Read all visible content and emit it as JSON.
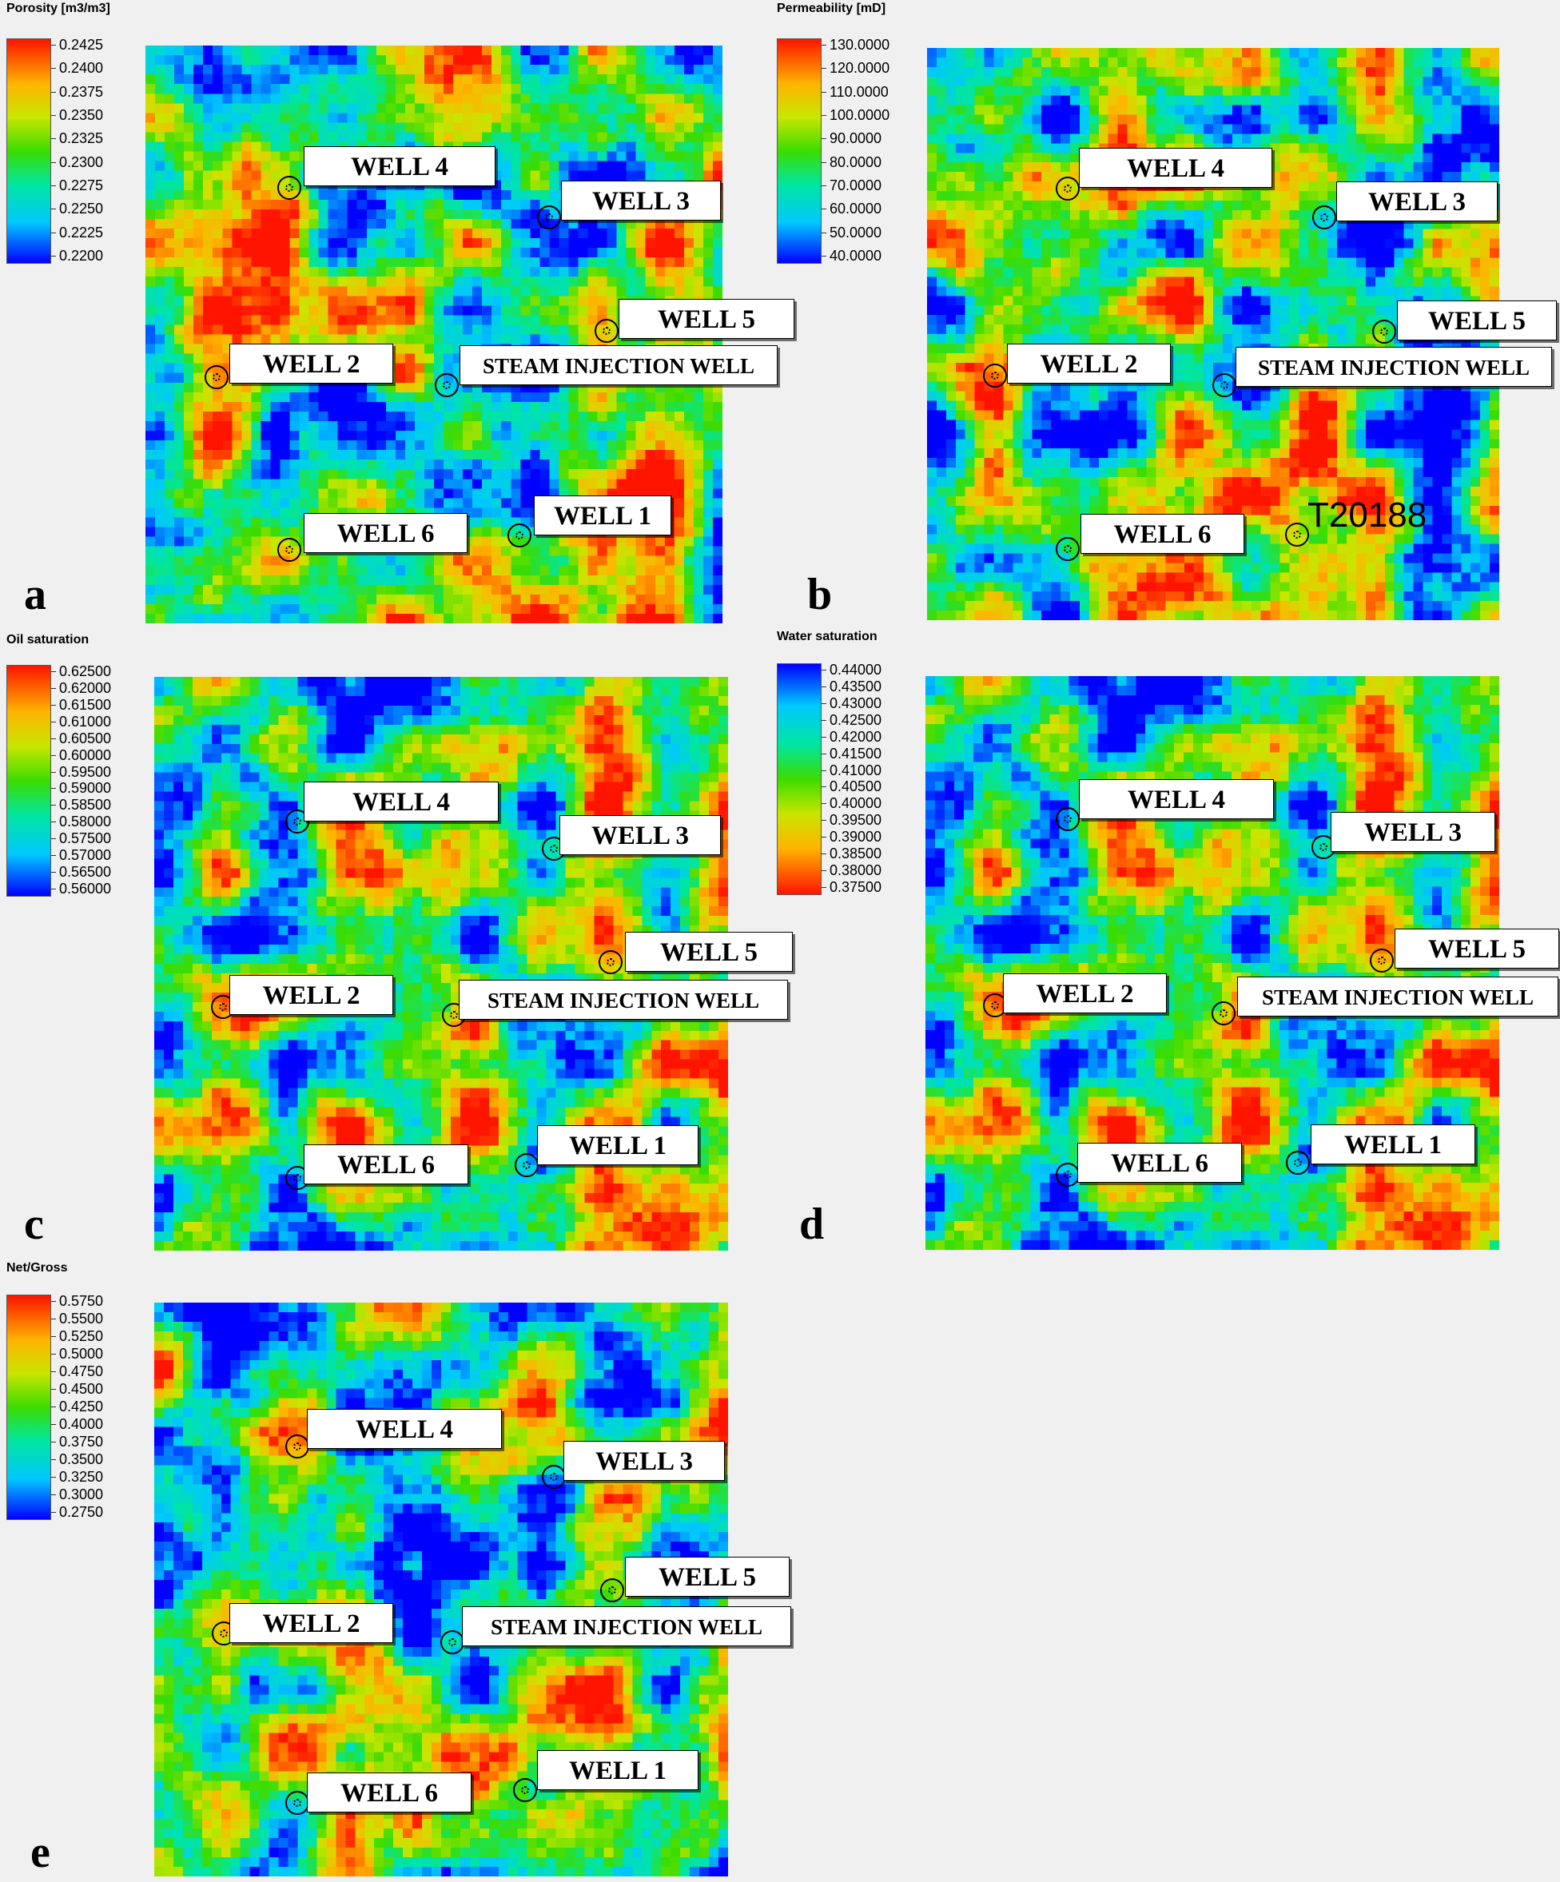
{
  "panels": [
    {
      "id": "a",
      "letter": "a",
      "legend_title": "Porosity [m3/m3]",
      "scale_colors": "rainbow_high_top",
      "ticks": [
        "0.2425",
        "0.2400",
        "0.2375",
        "0.2350",
        "0.2325",
        "0.2300",
        "0.2275",
        "0.2250",
        "0.2225",
        "0.2200"
      ],
      "seed": 11,
      "wells": [
        {
          "name": "WELL 4"
        },
        {
          "name": "WELL 3"
        },
        {
          "name": "WELL 5"
        },
        {
          "name": "WELL 2"
        },
        {
          "name": "STEAM INJECTION WELL"
        },
        {
          "name": "WELL 6"
        },
        {
          "name": "WELL 1"
        }
      ]
    },
    {
      "id": "b",
      "letter": "b",
      "legend_title": "Permeability [mD]",
      "scale_colors": "rainbow_high_top",
      "ticks": [
        "130.0000",
        "120.0000",
        "110.0000",
        "100.0000",
        "90.0000",
        "80.0000",
        "70.0000",
        "60.0000",
        "50.0000",
        "40.0000"
      ],
      "seed": 23,
      "raw_label": "T20188",
      "wells": [
        {
          "name": "WELL 4"
        },
        {
          "name": "WELL 3"
        },
        {
          "name": "WELL 5"
        },
        {
          "name": "WELL 2"
        },
        {
          "name": "STEAM INJECTION WELL"
        },
        {
          "name": "WELL 6"
        }
      ]
    },
    {
      "id": "c",
      "letter": "c",
      "legend_title": "Oil saturation",
      "scale_colors": "rainbow_high_top",
      "ticks": [
        "0.62500",
        "0.62000",
        "0.61500",
        "0.61000",
        "0.60500",
        "0.60000",
        "0.59500",
        "0.59000",
        "0.58500",
        "0.58000",
        "0.57500",
        "0.57000",
        "0.56500",
        "0.56000"
      ],
      "seed": 37,
      "wells": [
        {
          "name": "WELL 4"
        },
        {
          "name": "WELL 3"
        },
        {
          "name": "WELL 5"
        },
        {
          "name": "WELL 2"
        },
        {
          "name": "STEAM INJECTION WELL"
        },
        {
          "name": "WELL 1"
        },
        {
          "name": "WELL 6"
        }
      ]
    },
    {
      "id": "d",
      "letter": "d",
      "legend_title": "Water saturation",
      "scale_colors": "rainbow_high_bottom",
      "ticks": [
        "0.44000",
        "0.43500",
        "0.43000",
        "0.42500",
        "0.42000",
        "0.41500",
        "0.41000",
        "0.40500",
        "0.40000",
        "0.39500",
        "0.39000",
        "0.38500",
        "0.38000",
        "0.37500"
      ],
      "seed": 37,
      "wells": [
        {
          "name": "WELL 4"
        },
        {
          "name": "WELL 3"
        },
        {
          "name": "WELL 5"
        },
        {
          "name": "WELL 2"
        },
        {
          "name": "STEAM INJECTION WELL"
        },
        {
          "name": "WELL 6"
        },
        {
          "name": "WELL 1"
        }
      ]
    },
    {
      "id": "e",
      "letter": "e",
      "legend_title": "Net/Gross",
      "scale_colors": "rainbow_high_top",
      "ticks": [
        "0.5750",
        "0.5500",
        "0.5250",
        "0.5000",
        "0.4750",
        "0.4500",
        "0.4250",
        "0.4000",
        "0.3750",
        "0.3500",
        "0.3250",
        "0.3000",
        "0.2750"
      ],
      "seed": 53,
      "wells": [
        {
          "name": "WELL 4"
        },
        {
          "name": "WELL 3"
        },
        {
          "name": "WELL 5"
        },
        {
          "name": "WELL 2"
        },
        {
          "name": "STEAM INJECTION WELL"
        },
        {
          "name": "WELL 1"
        },
        {
          "name": "WELL 6"
        }
      ]
    }
  ]
}
